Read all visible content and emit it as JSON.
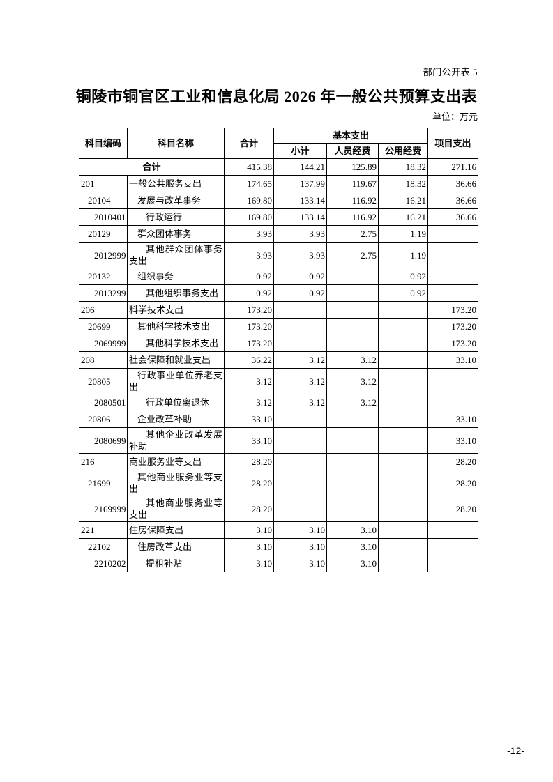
{
  "page": {
    "corner_label": "部门公开表 5",
    "title": "铜陵市铜官区工业和信息化局 2026 年一般公共预算支出表",
    "unit_note": "单位：万元",
    "page_number": "-12-"
  },
  "table": {
    "headers": {
      "code": "科目编码",
      "name": "科目名称",
      "total": "合计",
      "basic_group": "基本支出",
      "basic_subtotal": "小计",
      "personnel": "人员经费",
      "public_funds": "公用经费",
      "project": "项目支出"
    },
    "rows": [
      {
        "code": "",
        "name": "合计",
        "level": 0,
        "summary": true,
        "total": "415.38",
        "subtotal": "144.21",
        "personnel": "125.89",
        "public_funds": "18.32",
        "project": "271.16"
      },
      {
        "code": "201",
        "name": "一般公共服务支出",
        "level": 1,
        "total": "174.65",
        "subtotal": "137.99",
        "personnel": "119.67",
        "public_funds": "18.32",
        "project": "36.66"
      },
      {
        "code": "20104",
        "name": "发展与改革事务",
        "level": 2,
        "total": "169.80",
        "subtotal": "133.14",
        "personnel": "116.92",
        "public_funds": "16.21",
        "project": "36.66"
      },
      {
        "code": "2010401",
        "name": "行政运行",
        "level": 3,
        "total": "169.80",
        "subtotal": "133.14",
        "personnel": "116.92",
        "public_funds": "16.21",
        "project": "36.66"
      },
      {
        "code": "20129",
        "name": "群众团体事务",
        "level": 2,
        "total": "3.93",
        "subtotal": "3.93",
        "personnel": "2.75",
        "public_funds": "1.19",
        "project": ""
      },
      {
        "code": "2012999",
        "name": "其他群众团体事务支出",
        "level": 3,
        "total": "3.93",
        "subtotal": "3.93",
        "personnel": "2.75",
        "public_funds": "1.19",
        "project": ""
      },
      {
        "code": "20132",
        "name": "组织事务",
        "level": 2,
        "total": "0.92",
        "subtotal": "0.92",
        "personnel": "",
        "public_funds": "0.92",
        "project": ""
      },
      {
        "code": "2013299",
        "name": "其他组织事务支出",
        "level": 3,
        "total": "0.92",
        "subtotal": "0.92",
        "personnel": "",
        "public_funds": "0.92",
        "project": ""
      },
      {
        "code": "206",
        "name": "科学技术支出",
        "level": 1,
        "total": "173.20",
        "subtotal": "",
        "personnel": "",
        "public_funds": "",
        "project": "173.20"
      },
      {
        "code": "20699",
        "name": "其他科学技术支出",
        "level": 2,
        "total": "173.20",
        "subtotal": "",
        "personnel": "",
        "public_funds": "",
        "project": "173.20"
      },
      {
        "code": "2069999",
        "name": "其他科学技术支出",
        "level": 3,
        "total": "173.20",
        "subtotal": "",
        "personnel": "",
        "public_funds": "",
        "project": "173.20"
      },
      {
        "code": "208",
        "name": "社会保障和就业支出",
        "level": 1,
        "total": "36.22",
        "subtotal": "3.12",
        "personnel": "3.12",
        "public_funds": "",
        "project": "33.10"
      },
      {
        "code": "20805",
        "name": "行政事业单位养老支出",
        "level": 2,
        "total": "3.12",
        "subtotal": "3.12",
        "personnel": "3.12",
        "public_funds": "",
        "project": ""
      },
      {
        "code": "2080501",
        "name": "行政单位离退休",
        "level": 3,
        "total": "3.12",
        "subtotal": "3.12",
        "personnel": "3.12",
        "public_funds": "",
        "project": ""
      },
      {
        "code": "20806",
        "name": "企业改革补助",
        "level": 2,
        "total": "33.10",
        "subtotal": "",
        "personnel": "",
        "public_funds": "",
        "project": "33.10"
      },
      {
        "code": "2080699",
        "name": "其他企业改革发展补助",
        "level": 3,
        "total": "33.10",
        "subtotal": "",
        "personnel": "",
        "public_funds": "",
        "project": "33.10"
      },
      {
        "code": "216",
        "name": "商业服务业等支出",
        "level": 1,
        "total": "28.20",
        "subtotal": "",
        "personnel": "",
        "public_funds": "",
        "project": "28.20"
      },
      {
        "code": "21699",
        "name": "其他商业服务业等支出",
        "level": 2,
        "total": "28.20",
        "subtotal": "",
        "personnel": "",
        "public_funds": "",
        "project": "28.20"
      },
      {
        "code": "2169999",
        "name": "其他商业服务业等支出",
        "level": 3,
        "total": "28.20",
        "subtotal": "",
        "personnel": "",
        "public_funds": "",
        "project": "28.20"
      },
      {
        "code": "221",
        "name": "住房保障支出",
        "level": 1,
        "total": "3.10",
        "subtotal": "3.10",
        "personnel": "3.10",
        "public_funds": "",
        "project": ""
      },
      {
        "code": "22102",
        "name": "住房改革支出",
        "level": 2,
        "total": "3.10",
        "subtotal": "3.10",
        "personnel": "3.10",
        "public_funds": "",
        "project": ""
      },
      {
        "code": "2210202",
        "name": "提租补贴",
        "level": 3,
        "total": "3.10",
        "subtotal": "3.10",
        "personnel": "3.10",
        "public_funds": "",
        "project": ""
      }
    ]
  }
}
